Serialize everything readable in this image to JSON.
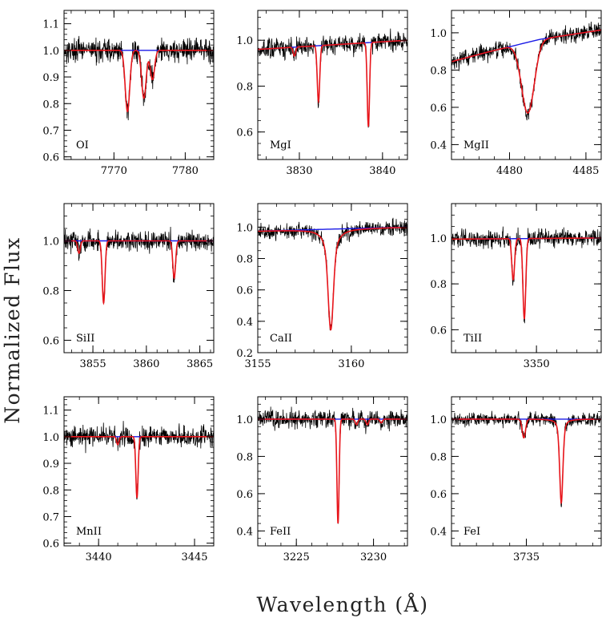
{
  "figure": {
    "ylabel": "Normalized Flux",
    "xlabel": "Wavelength (Å)"
  },
  "colors": {
    "observed": "#000000",
    "model_fit": "#e8141a",
    "continuum": "#1a1ae6",
    "axes": "#000000"
  },
  "chart_data": [
    {
      "type": "line",
      "panel": "OI",
      "label": "OI",
      "xlim": [
        7763,
        7784
      ],
      "ylim": [
        0.59,
        1.15
      ],
      "xticks": [
        7770,
        7780
      ],
      "yticks": [
        0.6,
        0.7,
        0.8,
        0.9,
        1.0,
        1.1
      ],
      "yticklabels": [
        "0.6",
        "0.7",
        "0.8",
        "0.9",
        "1.0",
        "1.1"
      ],
      "noise": 0.022,
      "continuum": [
        [
          7763,
          1.0
        ],
        [
          7784,
          1.0
        ]
      ],
      "lines": [
        {
          "center": 7771.9,
          "depth": 0.23,
          "width": 0.32
        },
        {
          "center": 7774.2,
          "depth": 0.18,
          "width": 0.32
        },
        {
          "center": 7775.4,
          "depth": 0.11,
          "width": 0.3
        }
      ],
      "series": [
        {
          "name": "observed",
          "role": "observed"
        },
        {
          "name": "model",
          "role": "model"
        },
        {
          "name": "continuum",
          "role": "continuum"
        }
      ]
    },
    {
      "type": "line",
      "panel": "MgI",
      "label": "MgI",
      "xlim": [
        3825,
        3843
      ],
      "ylim": [
        0.48,
        1.13
      ],
      "xticks": [
        3830,
        3840
      ],
      "yticks": [
        0.6,
        0.8,
        1.0
      ],
      "yticklabels": [
        "0.6",
        "0.8",
        "1.0"
      ],
      "noise": 0.022,
      "continuum": [
        [
          3825,
          0.96
        ],
        [
          3843,
          1.0
        ]
      ],
      "lines": [
        {
          "center": 3829.4,
          "depth": 0.04,
          "width": 0.15
        },
        {
          "center": 3832.3,
          "depth": 0.25,
          "width": 0.15
        },
        {
          "center": 3838.3,
          "depth": 0.37,
          "width": 0.14
        }
      ],
      "series": [
        {
          "name": "observed",
          "role": "observed"
        },
        {
          "name": "model",
          "role": "model"
        },
        {
          "name": "continuum",
          "role": "continuum"
        }
      ]
    },
    {
      "type": "line",
      "panel": "MgII",
      "label": "MgII",
      "xlim": [
        4476.2,
        4486.0
      ],
      "ylim": [
        0.32,
        1.12
      ],
      "xticks": [
        4480,
        4485
      ],
      "yticks": [
        0.4,
        0.6,
        0.8,
        1.0
      ],
      "yticklabels": [
        "0.4",
        "0.6",
        "0.8",
        "1.0"
      ],
      "noise": 0.022,
      "continuum": [
        [
          4476.2,
          0.845
        ],
        [
          4478.5,
          0.895
        ],
        [
          4482.0,
          0.965
        ],
        [
          4486.0,
          1.015
        ]
      ],
      "lines": [
        {
          "center": 4481.2,
          "depth": 0.4,
          "width": 0.42
        }
      ],
      "series": [
        {
          "name": "observed",
          "role": "observed"
        },
        {
          "name": "model",
          "role": "model"
        },
        {
          "name": "continuum",
          "role": "continuum"
        }
      ]
    },
    {
      "type": "line",
      "panel": "SiII",
      "label": "SiII",
      "xlim": [
        3852.3,
        3866.3
      ],
      "ylim": [
        0.55,
        1.15
      ],
      "xticks": [
        3855,
        3860,
        3865
      ],
      "yticks": [
        0.6,
        0.8,
        1.0
      ],
      "yticklabels": [
        "0.6",
        "0.8",
        "1.0"
      ],
      "noise": 0.02,
      "continuum": [
        [
          3852.3,
          1.0
        ],
        [
          3866.3,
          1.0
        ]
      ],
      "lines": [
        {
          "center": 3853.7,
          "depth": 0.05,
          "width": 0.12
        },
        {
          "center": 3856.0,
          "depth": 0.25,
          "width": 0.13
        },
        {
          "center": 3862.6,
          "depth": 0.15,
          "width": 0.13
        }
      ],
      "series": [
        {
          "name": "observed",
          "role": "observed"
        },
        {
          "name": "model",
          "role": "model"
        },
        {
          "name": "continuum",
          "role": "continuum"
        }
      ]
    },
    {
      "type": "line",
      "panel": "CaII",
      "label": "CaII",
      "xlim": [
        3155,
        3163
      ],
      "ylim": [
        0.2,
        1.15
      ],
      "xticks": [
        3155,
        3160
      ],
      "yticks": [
        0.2,
        0.4,
        0.6,
        0.8,
        1.0
      ],
      "yticklabels": [
        "0.2",
        "0.4",
        "0.6",
        "0.8",
        "1.0"
      ],
      "noise": 0.025,
      "continuum": [
        [
          3155,
          0.975
        ],
        [
          3163,
          1.0
        ]
      ],
      "lines": [
        {
          "center": 3158.9,
          "depth": 0.65,
          "width": 0.13,
          "lorentz": 0.25
        }
      ],
      "series": [
        {
          "name": "observed",
          "role": "observed"
        },
        {
          "name": "model",
          "role": "model"
        },
        {
          "name": "continuum",
          "role": "continuum"
        }
      ]
    },
    {
      "type": "line",
      "panel": "TiII",
      "label": "TiII",
      "xlim": [
        3345.8,
        3353.2
      ],
      "ylim": [
        0.5,
        1.15
      ],
      "xticks": [
        3350
      ],
      "yticks": [
        0.6,
        0.8,
        1.0
      ],
      "yticklabels": [
        "0.6",
        "0.8",
        "1.0"
      ],
      "noise": 0.02,
      "continuum": [
        [
          3345.8,
          0.995
        ],
        [
          3353.2,
          1.0
        ]
      ],
      "lines": [
        {
          "center": 3348.85,
          "depth": 0.18,
          "width": 0.07
        },
        {
          "center": 3349.4,
          "depth": 0.35,
          "width": 0.07
        }
      ],
      "series": [
        {
          "name": "observed",
          "role": "observed"
        },
        {
          "name": "model",
          "role": "model"
        },
        {
          "name": "continuum",
          "role": "continuum"
        }
      ]
    },
    {
      "type": "line",
      "panel": "MnII",
      "label": "MnII",
      "xlim": [
        3438.2,
        3446.0
      ],
      "ylim": [
        0.59,
        1.15
      ],
      "xticks": [
        3440,
        3445
      ],
      "yticks": [
        0.6,
        0.7,
        0.8,
        0.9,
        1.0,
        1.1
      ],
      "yticklabels": [
        "0.6",
        "0.7",
        "0.8",
        "0.9",
        "1.0",
        "1.1"
      ],
      "noise": 0.02,
      "continuum": [
        [
          3438.2,
          1.0
        ],
        [
          3446.0,
          1.0
        ]
      ],
      "lines": [
        {
          "center": 3441.0,
          "depth": 0.03,
          "width": 0.06
        },
        {
          "center": 3442.0,
          "depth": 0.23,
          "width": 0.06
        }
      ],
      "series": [
        {
          "name": "observed",
          "role": "observed"
        },
        {
          "name": "model",
          "role": "model"
        },
        {
          "name": "continuum",
          "role": "continuum"
        }
      ]
    },
    {
      "type": "line",
      "panel": "FeII",
      "label": "FeII",
      "xlim": [
        3222.5,
        3232.2
      ],
      "ylim": [
        0.32,
        1.12
      ],
      "xticks": [
        3225,
        3230
      ],
      "yticks": [
        0.4,
        0.6,
        0.8,
        1.0
      ],
      "yticklabels": [
        "0.4",
        "0.6",
        "0.8",
        "1.0"
      ],
      "noise": 0.025,
      "continuum": [
        [
          3222.5,
          1.0
        ],
        [
          3232.2,
          1.0
        ]
      ],
      "lines": [
        {
          "center": 3227.7,
          "depth": 0.56,
          "width": 0.07
        },
        {
          "center": 3228.9,
          "depth": 0.03,
          "width": 0.08
        },
        {
          "center": 3229.6,
          "depth": 0.03,
          "width": 0.08
        },
        {
          "center": 3230.5,
          "depth": 0.02,
          "width": 0.08
        }
      ],
      "series": [
        {
          "name": "observed",
          "role": "observed"
        },
        {
          "name": "model",
          "role": "model"
        },
        {
          "name": "continuum",
          "role": "continuum"
        }
      ]
    },
    {
      "type": "line",
      "panel": "FeI",
      "label": "FeI",
      "xlim": [
        3730.5,
        3739.5
      ],
      "ylim": [
        0.32,
        1.12
      ],
      "xticks": [
        3735
      ],
      "yticks": [
        0.4,
        0.6,
        0.8,
        1.0
      ],
      "yticklabels": [
        "0.4",
        "0.6",
        "0.8",
        "1.0"
      ],
      "noise": 0.018,
      "continuum": [
        [
          3730.5,
          1.0
        ],
        [
          3739.5,
          1.0
        ]
      ],
      "lines": [
        {
          "center": 3734.85,
          "depth": 0.1,
          "width": 0.1
        },
        {
          "center": 3737.1,
          "depth": 0.45,
          "width": 0.1,
          "lorentz": 0.12
        }
      ],
      "series": [
        {
          "name": "observed",
          "role": "observed"
        },
        {
          "name": "model",
          "role": "model"
        },
        {
          "name": "continuum",
          "role": "continuum"
        }
      ]
    }
  ]
}
